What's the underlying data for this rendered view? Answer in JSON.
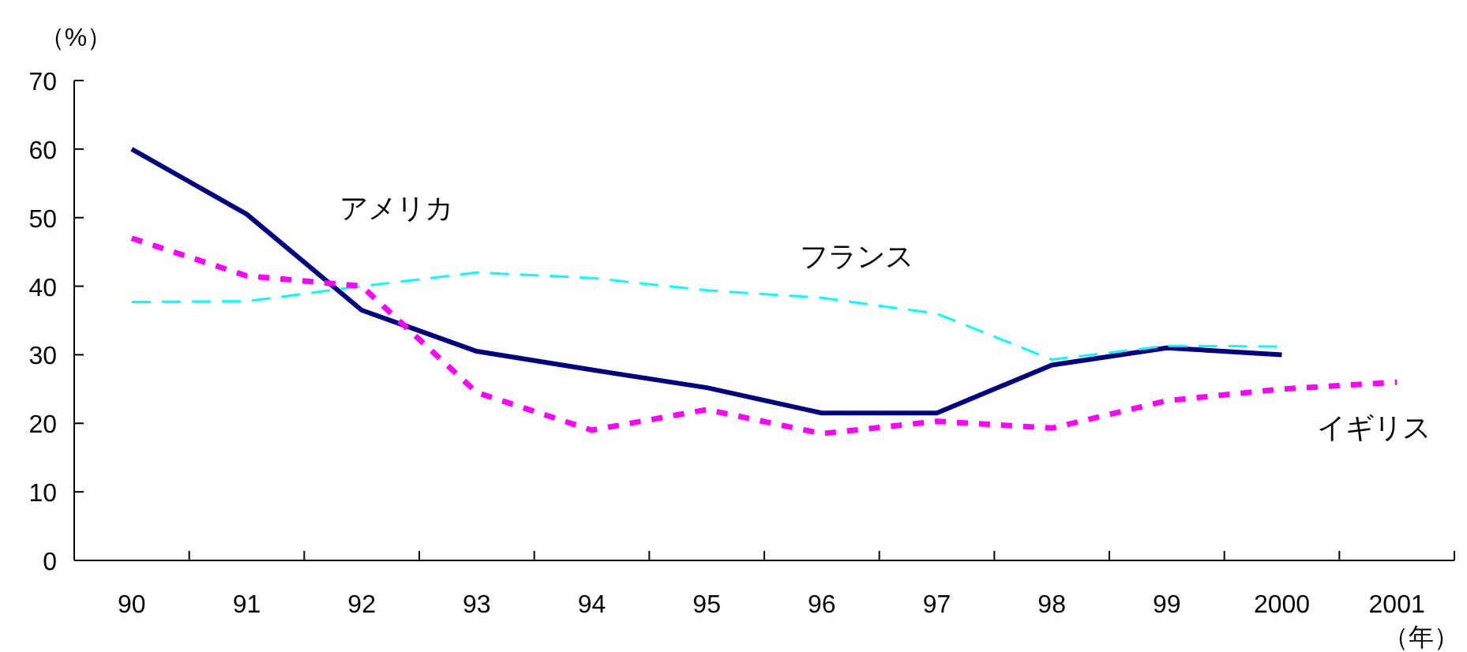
{
  "chart_data": {
    "type": "line",
    "ylabel": "（%）",
    "xlabel": "（年）",
    "categories": [
      "90",
      "91",
      "92",
      "93",
      "94",
      "95",
      "96",
      "97",
      "98",
      "99",
      "2000",
      "2001"
    ],
    "ylim": [
      0,
      70
    ],
    "yticks": [
      0,
      10,
      20,
      30,
      40,
      50,
      60,
      70
    ],
    "grid": false,
    "series": [
      {
        "name": "アメリカ",
        "color": "#000080",
        "line_style": "solid",
        "values": [
          60,
          50.5,
          36.5,
          30.5,
          27.8,
          25.2,
          21.5,
          21.5,
          28.5,
          31,
          30,
          null
        ]
      },
      {
        "name": "フランス",
        "color": "#00ffff",
        "line_style": "dashed",
        "values": [
          37.7,
          37.8,
          40,
          42,
          41.2,
          39.4,
          38.3,
          36,
          29.3,
          31.3,
          31.2,
          null
        ]
      },
      {
        "name": "イギリス",
        "color": "#ff00ff",
        "line_style": "dotted",
        "values": [
          47,
          41.5,
          40,
          24.5,
          19,
          22,
          18.5,
          20.3,
          19.3,
          23.3,
          25,
          26
        ]
      }
    ]
  }
}
